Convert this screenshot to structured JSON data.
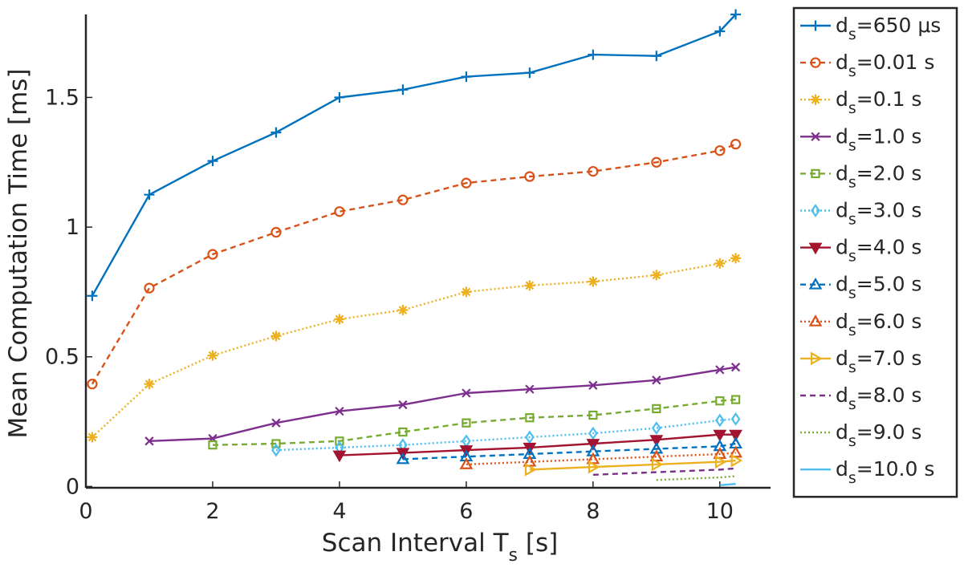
{
  "chart_data": {
    "type": "line",
    "title": "",
    "xlabel": {
      "main": "Scan Interval T",
      "sub": "s",
      "unit": " [s]"
    },
    "ylabel": "Mean Computation Time [ms]",
    "xlim": [
      0,
      10.8
    ],
    "ylim": [
      -0.005,
      1.82
    ],
    "xticks": [
      0,
      2,
      4,
      6,
      8,
      10
    ],
    "xtick_labels": [
      "0",
      "2",
      "4",
      "6",
      "8",
      "10"
    ],
    "yticks": [
      0,
      0.5,
      1,
      1.5
    ],
    "ytick_labels": [
      "0",
      "0.5",
      "1",
      "1.5"
    ],
    "grid": false,
    "legend_position": "right",
    "series": [
      {
        "label_main": "d",
        "label_sub": "s",
        "label_rest": "=650 μs",
        "color": "#0072BD",
        "dash": "",
        "marker": "plus",
        "x": [
          0.1,
          1,
          2,
          3,
          4,
          5,
          6,
          7,
          8,
          9,
          10,
          10.25
        ],
        "y": [
          0.735,
          1.125,
          1.255,
          1.365,
          1.5,
          1.53,
          1.58,
          1.595,
          1.665,
          1.66,
          1.755,
          1.82
        ]
      },
      {
        "label_main": "d",
        "label_sub": "s",
        "label_rest": "=0.01 s",
        "color": "#D95319",
        "dash": "7,5",
        "marker": "circle",
        "x": [
          0.1,
          1,
          2,
          3,
          4,
          5,
          6,
          7,
          8,
          9,
          10,
          10.25
        ],
        "y": [
          0.395,
          0.765,
          0.895,
          0.98,
          1.06,
          1.105,
          1.17,
          1.195,
          1.215,
          1.25,
          1.295,
          1.32
        ]
      },
      {
        "label_main": "d",
        "label_sub": "s",
        "label_rest": "=0.1 s",
        "color": "#EDB120",
        "dash": "2,3",
        "marker": "asterisk",
        "x": [
          0.1,
          1,
          2,
          3,
          4,
          5,
          6,
          7,
          8,
          9,
          10,
          10.25
        ],
        "y": [
          0.19,
          0.395,
          0.505,
          0.58,
          0.645,
          0.68,
          0.75,
          0.775,
          0.79,
          0.815,
          0.86,
          0.88
        ]
      },
      {
        "label_main": "d",
        "label_sub": "s",
        "label_rest": "=1.0 s",
        "color": "#7E2F8E",
        "dash": "",
        "marker": "x",
        "x": [
          1,
          2,
          3,
          4,
          5,
          6,
          7,
          8,
          9,
          10,
          10.25
        ],
        "y": [
          0.175,
          0.185,
          0.245,
          0.29,
          0.315,
          0.36,
          0.375,
          0.39,
          0.41,
          0.45,
          0.46
        ]
      },
      {
        "label_main": "d",
        "label_sub": "s",
        "label_rest": "=2.0 s",
        "color": "#77AC30",
        "dash": "7,5",
        "marker": "square",
        "x": [
          2,
          3,
          4,
          5,
          6,
          7,
          8,
          9,
          10,
          10.25
        ],
        "y": [
          0.16,
          0.165,
          0.175,
          0.21,
          0.245,
          0.265,
          0.275,
          0.3,
          0.33,
          0.335
        ]
      },
      {
        "label_main": "d",
        "label_sub": "s",
        "label_rest": "=3.0 s",
        "color": "#4DBEEE",
        "dash": "2,3",
        "marker": "diamond",
        "x": [
          3,
          4,
          5,
          6,
          7,
          8,
          9,
          10,
          10.25
        ],
        "y": [
          0.14,
          0.15,
          0.16,
          0.175,
          0.19,
          0.205,
          0.225,
          0.255,
          0.26
        ]
      },
      {
        "label_main": "d",
        "label_sub": "s",
        "label_rest": "=4.0 s",
        "color": "#A2142F",
        "dash": "",
        "marker": "triangle-down",
        "x": [
          4,
          5,
          6,
          7,
          8,
          9,
          10,
          10.25
        ],
        "y": [
          0.12,
          0.13,
          0.14,
          0.15,
          0.165,
          0.18,
          0.2,
          0.2
        ]
      },
      {
        "label_main": "d",
        "label_sub": "s",
        "label_rest": "=5.0 s",
        "color": "#0072BD",
        "dash": "7,5",
        "marker": "triangle-up",
        "x": [
          5,
          6,
          7,
          8,
          9,
          10,
          10.25
        ],
        "y": [
          0.105,
          0.115,
          0.125,
          0.135,
          0.145,
          0.155,
          0.165
        ]
      },
      {
        "label_main": "d",
        "label_sub": "s",
        "label_rest": "=6.0 s",
        "color": "#D95319",
        "dash": "2,3",
        "marker": "triangle-up",
        "x": [
          6,
          7,
          8,
          9,
          10,
          10.25
        ],
        "y": [
          0.085,
          0.095,
          0.105,
          0.115,
          0.125,
          0.13
        ]
      },
      {
        "label_main": "d",
        "label_sub": "s",
        "label_rest": "=7.0 s",
        "color": "#EDB120",
        "dash": "",
        "marker": "triangle-right",
        "x": [
          7,
          8,
          9,
          10,
          10.25
        ],
        "y": [
          0.065,
          0.075,
          0.085,
          0.095,
          0.1
        ]
      },
      {
        "label_main": "d",
        "label_sub": "s",
        "label_rest": "=8.0 s",
        "color": "#7E2F8E",
        "dash": "7,5",
        "marker": "none",
        "x": [
          8,
          9,
          10,
          10.25
        ],
        "y": [
          0.045,
          0.055,
          0.065,
          0.07
        ]
      },
      {
        "label_main": "d",
        "label_sub": "s",
        "label_rest": "=9.0 s",
        "color": "#77AC30",
        "dash": "2,3",
        "marker": "none",
        "x": [
          9,
          10,
          10.25
        ],
        "y": [
          0.025,
          0.035,
          0.04
        ]
      },
      {
        "label_main": "d",
        "label_sub": "s",
        "label_rest": "=10.0 s",
        "color": "#4DBEEE",
        "dash": "",
        "marker": "none",
        "x": [
          10,
          10.25
        ],
        "y": [
          0.005,
          0.01
        ]
      }
    ]
  }
}
